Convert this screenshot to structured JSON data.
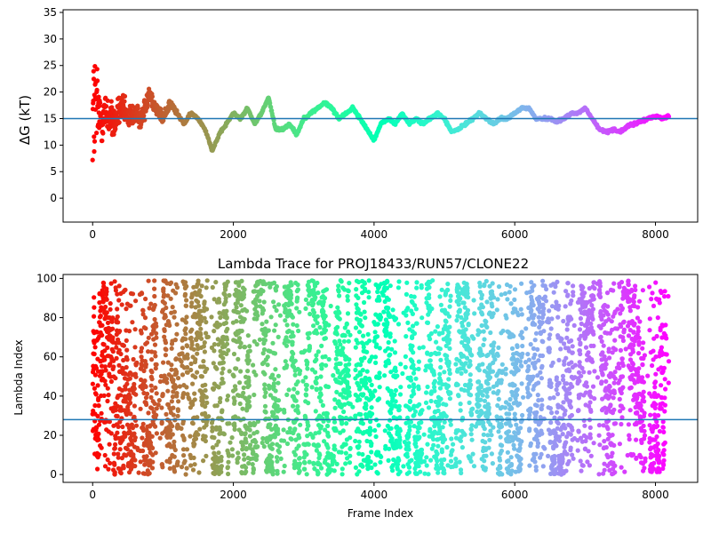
{
  "chart_data": [
    {
      "type": "scatter",
      "title": "",
      "xlabel": "",
      "ylabel": "ΔG (kT)",
      "xlim": [
        -420,
        8600
      ],
      "ylim": [
        -4.5,
        35.5
      ],
      "xticks": [
        0,
        2000,
        4000,
        6000,
        8000
      ],
      "xtick_labels": [
        "0",
        "2000",
        "4000",
        "6000",
        "8000"
      ],
      "yticks": [
        0,
        5,
        10,
        15,
        20,
        25,
        30,
        35
      ],
      "ytick_labels": [
        "0",
        "5",
        "10",
        "15",
        "20",
        "25",
        "30",
        "35"
      ],
      "hline": 15,
      "hline_color": "#1f77b4",
      "colormap": "rainbow (red at frame 0 → violet at frame ~8190)",
      "grid": false,
      "x_max": 8190,
      "trend_x": [
        0,
        50,
        100,
        200,
        300,
        400,
        500,
        600,
        700,
        800,
        900,
        1000,
        1100,
        1200,
        1300,
        1400,
        1500,
        1600,
        1700,
        1800,
        1900,
        2000,
        2100,
        2200,
        2300,
        2400,
        2500,
        2600,
        2700,
        2800,
        2900,
        3000,
        3100,
        3200,
        3300,
        3400,
        3500,
        3600,
        3700,
        3800,
        3900,
        4000,
        4100,
        4200,
        4300,
        4400,
        4500,
        4600,
        4700,
        4800,
        4900,
        5000,
        5100,
        5200,
        5300,
        5400,
        5500,
        5600,
        5700,
        5800,
        5900,
        6000,
        6100,
        6200,
        6300,
        6400,
        6500,
        6600,
        6700,
        6800,
        6900,
        7000,
        7100,
        7200,
        7300,
        7400,
        7500,
        7600,
        7700,
        7800,
        7900,
        8000,
        8100,
        8190
      ],
      "trend_y": [
        16,
        17,
        15,
        16,
        14,
        17,
        15,
        16,
        15,
        20,
        17,
        15,
        18,
        16,
        14,
        16,
        15,
        13,
        9,
        12,
        14,
        16,
        15,
        17,
        14,
        16,
        19,
        13,
        13,
        14,
        12,
        15,
        16,
        17,
        18,
        17,
        15,
        16,
        17,
        15,
        13,
        11,
        14,
        15,
        14,
        16,
        14,
        15,
        14,
        15,
        16,
        15,
        12.5,
        13,
        14,
        15,
        16,
        15,
        14,
        15,
        15,
        16,
        17,
        17,
        15,
        15,
        15,
        14.5,
        15,
        16,
        16,
        17,
        15,
        13,
        12.5,
        13,
        12.5,
        13.5,
        14,
        14.5,
        15,
        15.5,
        15,
        15.5
      ],
      "spread_envelope": {
        "x": [
          0,
          50,
          100,
          150,
          200,
          300,
          500,
          1000,
          1200
        ],
        "half_width": [
          17,
          14,
          9,
          6,
          5,
          4,
          3,
          1.5,
          0.6
        ]
      }
    },
    {
      "type": "scatter",
      "title": "Lambda Trace for PROJ18433/RUN57/CLONE22",
      "xlabel": "Frame Index",
      "ylabel": "Lambda Index",
      "xlim": [
        -420,
        8600
      ],
      "ylim": [
        -4,
        102
      ],
      "xticks": [
        0,
        2000,
        4000,
        6000,
        8000
      ],
      "xtick_labels": [
        "0",
        "2000",
        "4000",
        "6000",
        "8000"
      ],
      "yticks": [
        0,
        20,
        40,
        60,
        80,
        100
      ],
      "ytick_labels": [
        "0",
        "20",
        "40",
        "60",
        "80",
        "100"
      ],
      "hline": 28,
      "hline_color": "#1f77b4",
      "colormap": "rainbow (red at frame 0 → violet at frame ~8190)",
      "grid": false,
      "x_max": 8190,
      "lambda_range": [
        0,
        99
      ],
      "approx_points": 5200
    }
  ]
}
